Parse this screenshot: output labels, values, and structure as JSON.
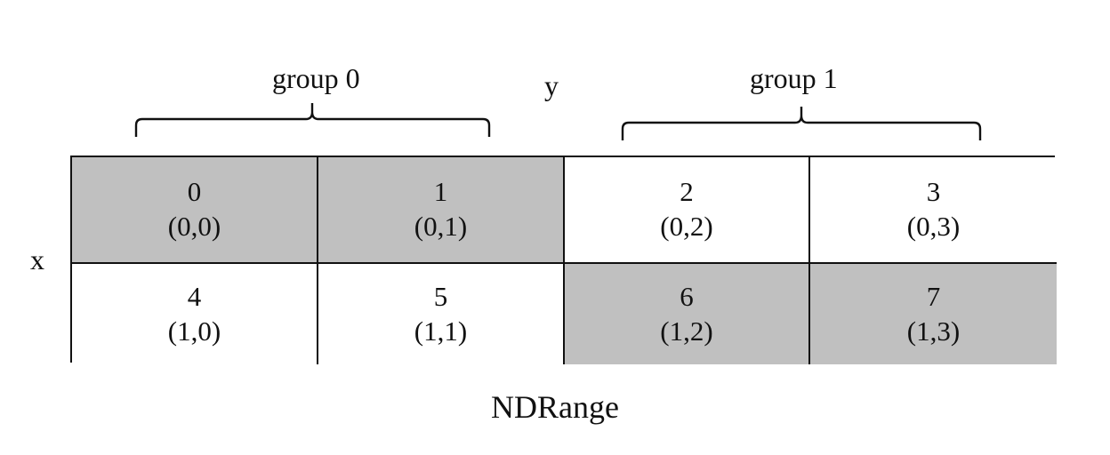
{
  "groups": [
    {
      "label": "group 0"
    },
    {
      "label": "group 1"
    }
  ],
  "axes": {
    "x": "x",
    "y": "y"
  },
  "caption": "NDRange",
  "colors": {
    "shaded": "#c0c0c0",
    "unshaded": "#ffffff",
    "line": "#111111"
  },
  "cells": [
    {
      "id": "0",
      "coord": "(0,0)",
      "shaded": true
    },
    {
      "id": "1",
      "coord": "(0,1)",
      "shaded": true
    },
    {
      "id": "2",
      "coord": "(0,2)",
      "shaded": false
    },
    {
      "id": "3",
      "coord": "(0,3)",
      "shaded": false
    },
    {
      "id": "4",
      "coord": "(1,0)",
      "shaded": false
    },
    {
      "id": "5",
      "coord": "(1,1)",
      "shaded": false
    },
    {
      "id": "6",
      "coord": "(1,2)",
      "shaded": true
    },
    {
      "id": "7",
      "coord": "(1,3)",
      "shaded": true
    }
  ]
}
